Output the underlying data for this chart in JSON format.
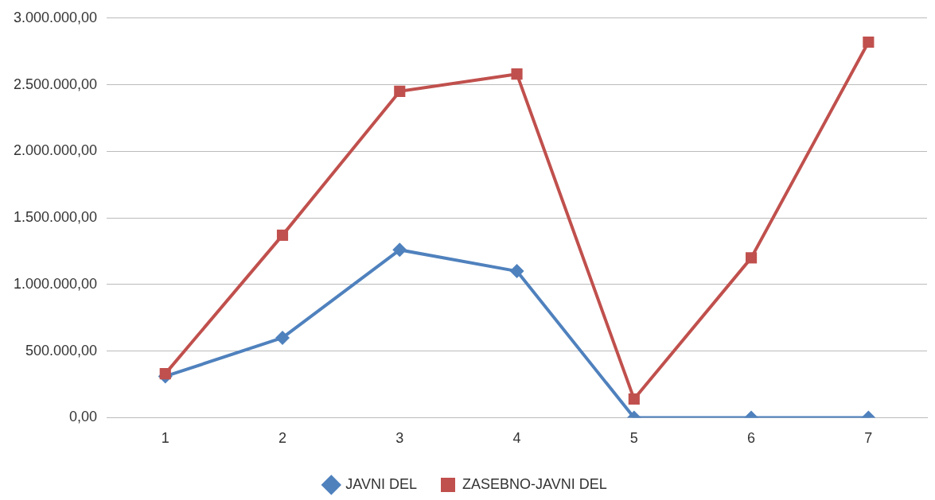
{
  "chart_data": {
    "type": "line",
    "categories": [
      "1",
      "2",
      "3",
      "4",
      "5",
      "6",
      "7"
    ],
    "series": [
      {
        "name": "JAVNI DEL",
        "color": "#4f81bd",
        "marker": "diamond",
        "values": [
          310000,
          600000,
          1260000,
          1100000,
          0,
          0,
          0
        ]
      },
      {
        "name": "ZASEBNO-JAVNI DEL",
        "color": "#c0504d",
        "marker": "square",
        "values": [
          330000,
          1370000,
          2450000,
          2580000,
          140000,
          1200000,
          2820000
        ]
      }
    ],
    "ylim": [
      0,
      3000000
    ],
    "yticks": [
      {
        "value": 0,
        "label": "0,00"
      },
      {
        "value": 500000,
        "label": "500.000,00"
      },
      {
        "value": 1000000,
        "label": "1.000.000,00"
      },
      {
        "value": 1500000,
        "label": "1.500.000,00"
      },
      {
        "value": 2000000,
        "label": "2.000.000,00"
      },
      {
        "value": 2500000,
        "label": "2.500.000,00"
      },
      {
        "value": 3000000,
        "label": "3.000.000,00"
      }
    ],
    "grid": "y",
    "legend": "bottom",
    "line_style": "solid"
  }
}
